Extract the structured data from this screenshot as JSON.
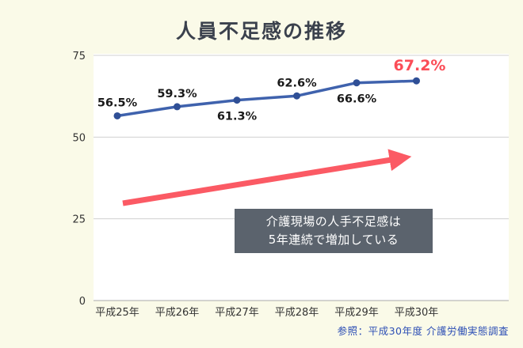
{
  "title": "人員不足感の推移",
  "annotation": {
    "line1": "介護現場の人手不足感は",
    "line2": "5年連続で増加している"
  },
  "source": "参照：平成30年度 介護労働実態調査",
  "colors": {
    "background": "#fafae8",
    "plot_bg": "#ffffff",
    "grid": "#d0d0d0",
    "axis_line": "#aaaaaa",
    "axis_text": "#333333",
    "line": "#3f62ad",
    "point": "#2f4f96",
    "label_text": "#1a1a1a",
    "highlight": "#fb4d57",
    "arrow": "#fb5a64",
    "annotation_bg": "#5b636d",
    "annotation_text": "#ffffff",
    "source_text": "#2d4fb5",
    "title_text": "#3b414d"
  },
  "chart_data": {
    "type": "line",
    "title": "人員不足感の推移",
    "categories": [
      "平成25年",
      "平成26年",
      "平成27年",
      "平成28年",
      "平成29年",
      "平成30年"
    ],
    "series": [
      {
        "name": "人員不足感",
        "values": [
          56.5,
          59.3,
          61.3,
          62.6,
          66.6,
          67.2
        ]
      }
    ],
    "data_labels": [
      "56.5%",
      "59.3%",
      "61.3%",
      "62.6%",
      "66.6%",
      "67.2%"
    ],
    "label_positions": [
      "above",
      "above",
      "below",
      "above",
      "below",
      "above"
    ],
    "highlight_index": 5,
    "xlabel": "",
    "ylabel": "",
    "ylim": [
      0,
      75
    ],
    "yticks": [
      0,
      25,
      50,
      75
    ],
    "grid": true,
    "legend": "none",
    "annotations": [
      {
        "type": "arrow",
        "text": ""
      },
      {
        "type": "text-box",
        "text": "介護現場の人手不足感は 5年連続で増加している"
      }
    ]
  }
}
